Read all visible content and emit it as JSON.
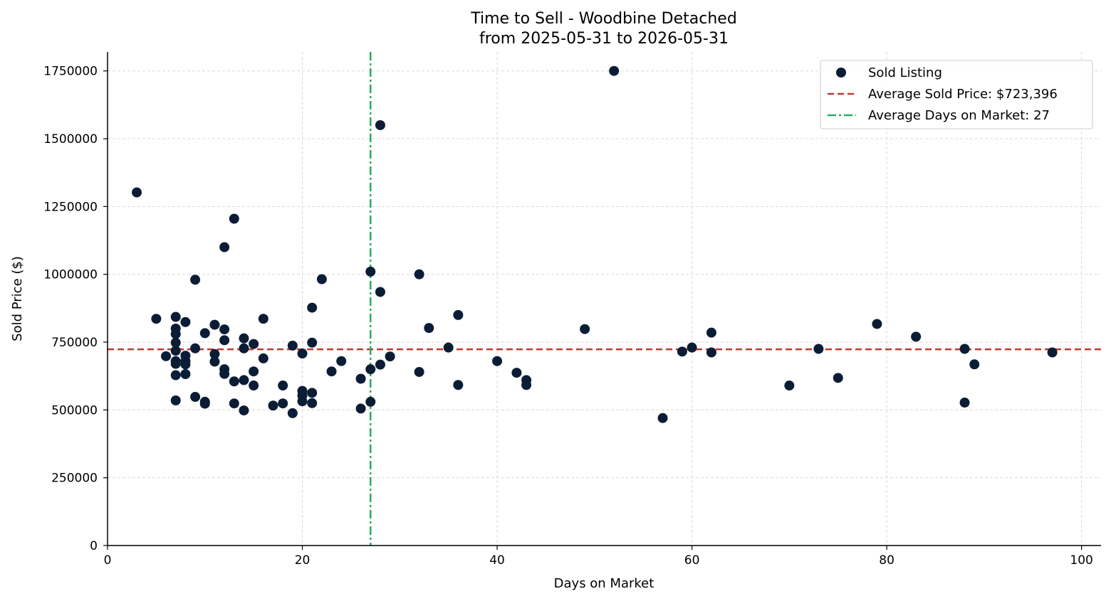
{
  "chart_data": {
    "type": "scatter",
    "title": "Time to Sell - Woodbine Detached",
    "subtitle": "from 2025-05-31 to 2026-05-31",
    "xlabel": "Days on Market",
    "ylabel": "Sold Price ($)",
    "xlim": [
      0,
      102
    ],
    "ylim": [
      0,
      1820000
    ],
    "xticks": [
      0,
      20,
      40,
      60,
      80,
      100
    ],
    "yticks": [
      0,
      250000,
      500000,
      750000,
      1000000,
      1250000,
      1500000,
      1750000
    ],
    "grid": true,
    "legend_position": "top-right",
    "series": [
      {
        "name": "Sold Listing",
        "color": "#0b1d36",
        "points": [
          [
            3,
            1302000
          ],
          [
            5,
            836000
          ],
          [
            6,
            698000
          ],
          [
            7,
            843000
          ],
          [
            7,
            800000
          ],
          [
            7,
            780000
          ],
          [
            7,
            748000
          ],
          [
            7,
            718000
          ],
          [
            7,
            680000
          ],
          [
            7,
            670000
          ],
          [
            7,
            628000
          ],
          [
            7,
            535000
          ],
          [
            8,
            824000
          ],
          [
            8,
            700000
          ],
          [
            8,
            680000
          ],
          [
            8,
            668000
          ],
          [
            8,
            632000
          ],
          [
            9,
            980000
          ],
          [
            9,
            727000
          ],
          [
            9,
            548000
          ],
          [
            10,
            783000
          ],
          [
            10,
            530000
          ],
          [
            10,
            523000
          ],
          [
            11,
            814000
          ],
          [
            11,
            706000
          ],
          [
            11,
            678000
          ],
          [
            12,
            1100000
          ],
          [
            12,
            797000
          ],
          [
            12,
            757000
          ],
          [
            12,
            650000
          ],
          [
            12,
            633000
          ],
          [
            13,
            1205000
          ],
          [
            13,
            605000
          ],
          [
            13,
            524000
          ],
          [
            14,
            764000
          ],
          [
            14,
            727000
          ],
          [
            14,
            610000
          ],
          [
            14,
            498000
          ],
          [
            15,
            743000
          ],
          [
            15,
            642000
          ],
          [
            15,
            590000
          ],
          [
            16,
            836000
          ],
          [
            16,
            690000
          ],
          [
            17,
            516000
          ],
          [
            18,
            590000
          ],
          [
            18,
            524000
          ],
          [
            19,
            737000
          ],
          [
            19,
            488000
          ],
          [
            20,
            708000
          ],
          [
            20,
            570000
          ],
          [
            20,
            553000
          ],
          [
            20,
            532000
          ],
          [
            21,
            877000
          ],
          [
            21,
            748000
          ],
          [
            21,
            563000
          ],
          [
            21,
            525000
          ],
          [
            22,
            982000
          ],
          [
            23,
            642000
          ],
          [
            24,
            680000
          ],
          [
            26,
            615000
          ],
          [
            26,
            505000
          ],
          [
            27,
            1010000
          ],
          [
            27,
            650000
          ],
          [
            27,
            530000
          ],
          [
            28,
            1550000
          ],
          [
            28,
            935000
          ],
          [
            28,
            667000
          ],
          [
            29,
            697000
          ],
          [
            32,
            1000000
          ],
          [
            32,
            640000
          ],
          [
            33,
            802000
          ],
          [
            35,
            730000
          ],
          [
            36,
            850000
          ],
          [
            36,
            592000
          ],
          [
            40,
            680000
          ],
          [
            42,
            637000
          ],
          [
            43,
            610000
          ],
          [
            43,
            592000
          ],
          [
            49,
            798000
          ],
          [
            52,
            1750000
          ],
          [
            57,
            470000
          ],
          [
            59,
            715000
          ],
          [
            60,
            730000
          ],
          [
            62,
            785000
          ],
          [
            62,
            712000
          ],
          [
            70,
            590000
          ],
          [
            73,
            725000
          ],
          [
            75,
            618000
          ],
          [
            79,
            817000
          ],
          [
            83,
            770000
          ],
          [
            88,
            725000
          ],
          [
            88,
            527000
          ],
          [
            89,
            668000
          ],
          [
            97,
            712000
          ]
        ]
      }
    ],
    "reference_lines": [
      {
        "orientation": "horizontal",
        "value": 723396,
        "label": "Average Sold Price: $723,396",
        "color": "#c0392b",
        "style": "dashed"
      },
      {
        "orientation": "vertical",
        "value": 27,
        "label": "Average Days on Market: 27",
        "color": "#27ae60",
        "style": "dashdot"
      }
    ]
  }
}
